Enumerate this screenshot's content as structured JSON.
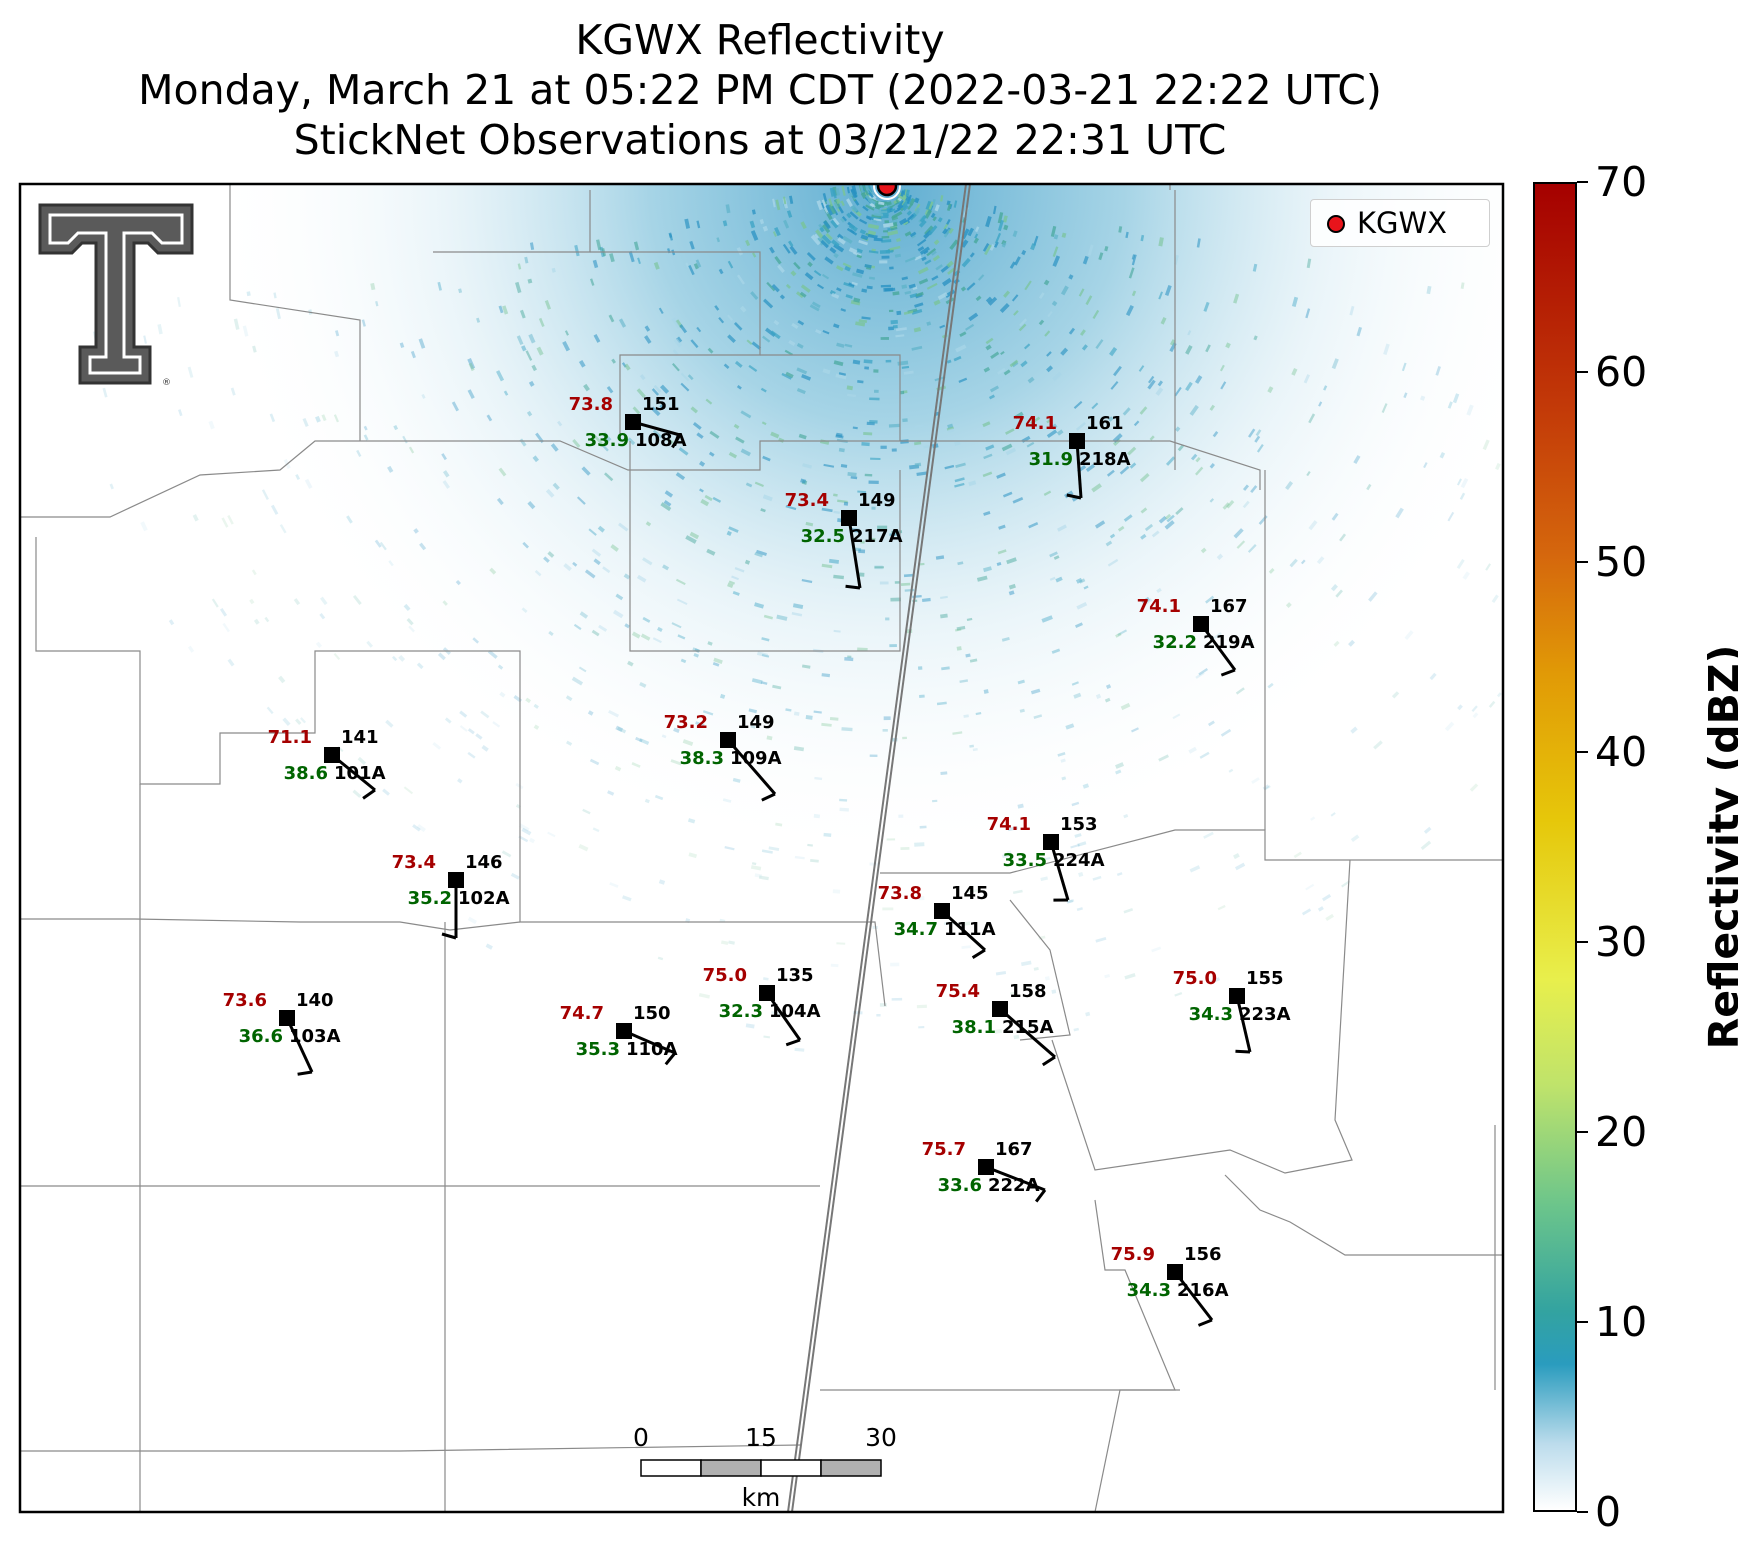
{
  "title": {
    "line1": "KGWX Reflectivity",
    "line2": "Monday, March 21 at 05:22 PM CDT (2022-03-21 22:22 UTC)",
    "line3": "StickNet Observations at 03/21/22 22:31 UTC"
  },
  "legend": {
    "label": "KGWX",
    "marker_color": "#e8141b"
  },
  "colorbar": {
    "title": "Reflectivity (dBZ)",
    "ticks": [
      "0",
      "10",
      "20",
      "30",
      "40",
      "50",
      "60",
      "70"
    ],
    "range": [
      0,
      70
    ]
  },
  "scalebar": {
    "labels": [
      "0",
      "15",
      "30"
    ],
    "unit": "km"
  },
  "logo": {
    "name": "Texas Tech Double T"
  },
  "stations": [
    {
      "id": "108A",
      "temp": "73.8",
      "dew": "33.9",
      "pressure": "151"
    },
    {
      "id": "218A",
      "temp": "74.1",
      "dew": "31.9",
      "pressure": "161"
    },
    {
      "id": "217A",
      "temp": "73.4",
      "dew": "32.5",
      "pressure": "149"
    },
    {
      "id": "219A",
      "temp": "74.1",
      "dew": "32.2",
      "pressure": "167"
    },
    {
      "id": "109A",
      "temp": "73.2",
      "dew": "38.3",
      "pressure": "149"
    },
    {
      "id": "101A",
      "temp": "71.1",
      "dew": "38.6",
      "pressure": "141"
    },
    {
      "id": "224A",
      "temp": "74.1",
      "dew": "33.5",
      "pressure": "153"
    },
    {
      "id": "102A",
      "temp": "73.4",
      "dew": "35.2",
      "pressure": "146"
    },
    {
      "id": "111A",
      "temp": "73.8",
      "dew": "34.7",
      "pressure": "145"
    },
    {
      "id": "104A",
      "temp": "75.0",
      "dew": "32.3",
      "pressure": "135"
    },
    {
      "id": "223A",
      "temp": "75.0",
      "dew": "34.3",
      "pressure": "155"
    },
    {
      "id": "215A",
      "temp": "75.4",
      "dew": "38.1",
      "pressure": "158"
    },
    {
      "id": "103A",
      "temp": "73.6",
      "dew": "36.6",
      "pressure": "140"
    },
    {
      "id": "110A",
      "temp": "74.7",
      "dew": "35.3",
      "pressure": "150"
    },
    {
      "id": "222A",
      "temp": "75.7",
      "dew": "33.6",
      "pressure": "167"
    },
    {
      "id": "216A",
      "temp": "75.9",
      "dew": "34.3",
      "pressure": "156"
    }
  ]
}
